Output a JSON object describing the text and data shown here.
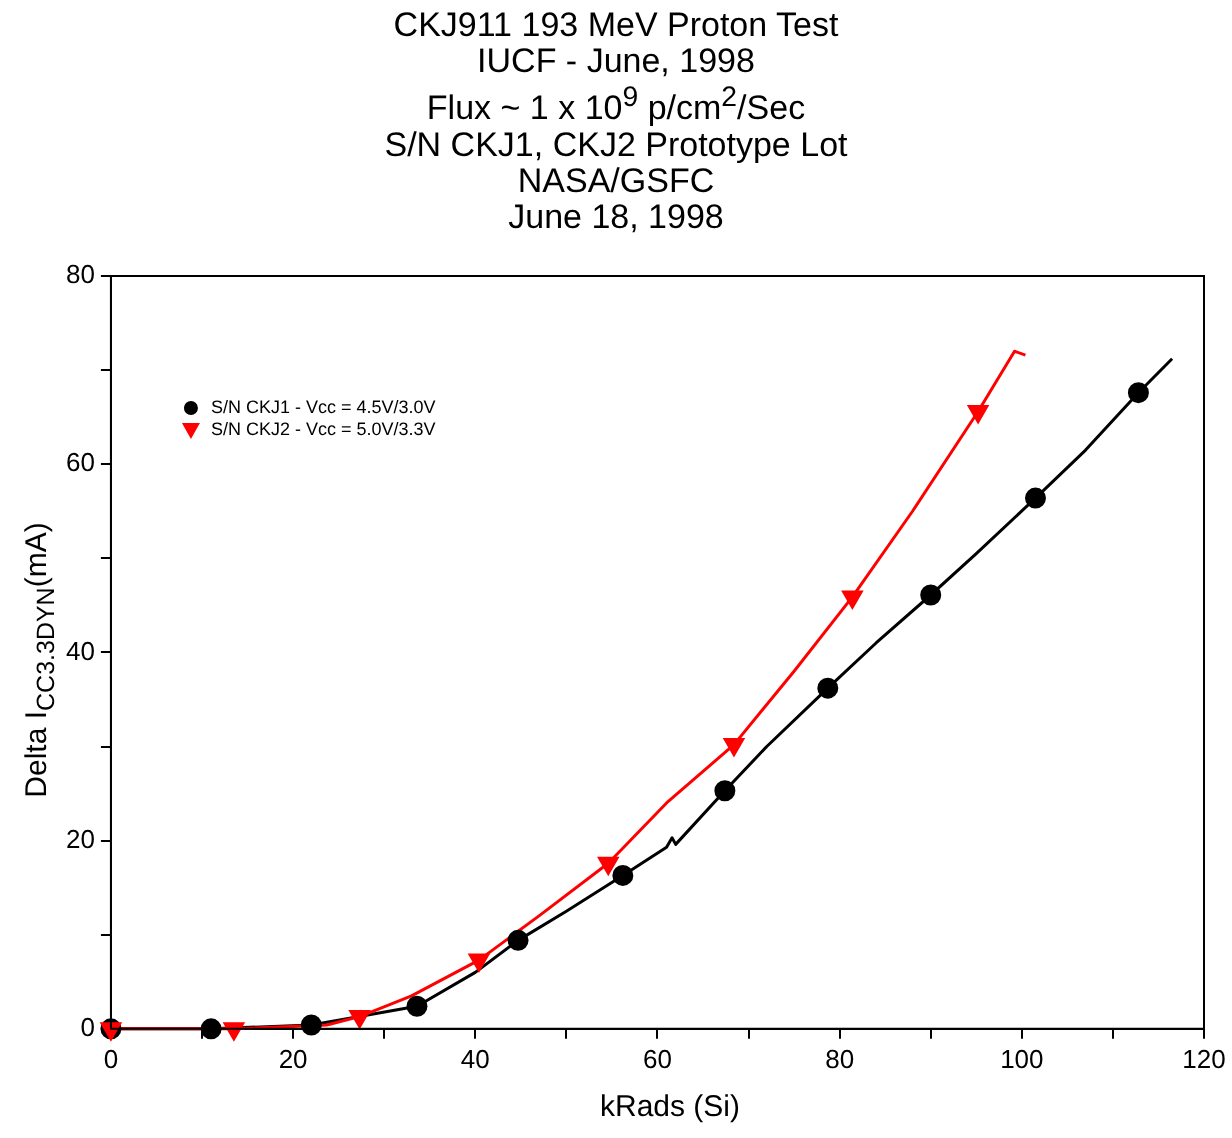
{
  "chart_data": {
    "type": "line",
    "title": "CKJ911 193 MeV Proton Test\nIUCF - June, 1998\nFlux ~ 1 x 10$^{9}$ p/cm$^{2}$/Sec\nS/N CKJ1, CKJ2 Prototype Lot\nNASA/GSFC\nJune 18, 1998",
    "xlabel": "kRads (Si)",
    "ylabel": "Delta I$_{CC3.3DYN}$(mA)",
    "xlim": [
      0,
      120
    ],
    "ylim": [
      0,
      80
    ],
    "xticks": [
      0,
      {
        "value": 10,
        "label": null
      },
      20,
      {
        "value": 30,
        "label": null
      },
      40,
      {
        "value": 50,
        "label": null
      },
      60,
      {
        "value": 70,
        "label": null
      },
      80,
      {
        "value": 90,
        "label": null
      },
      100,
      {
        "value": 110,
        "label": null
      },
      120
    ],
    "yticks": [
      0,
      {
        "value": 10,
        "label": null
      },
      20,
      {
        "value": 30,
        "label": null
      },
      40,
      {
        "value": 50,
        "label": null
      },
      60,
      {
        "value": 70,
        "label": null
      },
      80
    ],
    "grid": false,
    "legend": "top left",
    "series": [
      {
        "color": "#000000",
        "marker": "none",
        "x": [
          0,
          11,
          22,
          33.6,
          40,
          44.7,
          50,
          56.2,
          61,
          61.6,
          62,
          67.4,
          72,
          78.7,
          84,
          90,
          95,
          101.5,
          107,
          112.8,
          116.5
        ],
        "values": [
          0,
          0,
          0.4,
          2.4,
          6,
          9.4,
          12.5,
          16.3,
          19.3,
          20.3,
          19.6,
          25.3,
          30,
          36.2,
          41,
          46.1,
          50.5,
          56.4,
          61.5,
          67.6,
          71.2
        ]
      },
      {
        "color": "#ff0000",
        "marker": "none",
        "x": [
          0,
          13.5,
          23.7,
          27.3,
          33,
          40.4,
          47,
          54.6,
          61,
          68.4,
          75,
          81.4,
          88,
          95.2,
          99.2,
          100.4
        ],
        "values": [
          0,
          0,
          0.4,
          1.3,
          3.5,
          7.3,
          12,
          17.6,
          24,
          30.2,
          38,
          45.9,
          55,
          65.6,
          72,
          71.6
        ]
      },
      {
        "type": "scatter",
        "name": "S/N CKJ1 - Vcc = 4.5V/3.0V",
        "color": "#000000",
        "marker": "circle",
        "x": [
          0,
          11,
          22,
          33.6,
          44.7,
          56.2,
          67.4,
          78.7,
          90,
          101.5,
          112.8
        ],
        "values": [
          0,
          0,
          0.4,
          2.4,
          9.4,
          16.3,
          25.3,
          36.2,
          46.1,
          56.4,
          67.6
        ]
      },
      {
        "type": "scatter",
        "name": "S/N CKJ2 - Vcc = 5.0V/3.3V",
        "color": "#ff0000",
        "marker": "triangle",
        "x": [
          0,
          13.5,
          27.3,
          40.4,
          54.6,
          68.4,
          81.4,
          95.2
        ],
        "values": [
          0,
          0,
          1.3,
          7.3,
          17.6,
          30.2,
          45.9,
          65.6
        ]
      }
    ]
  }
}
